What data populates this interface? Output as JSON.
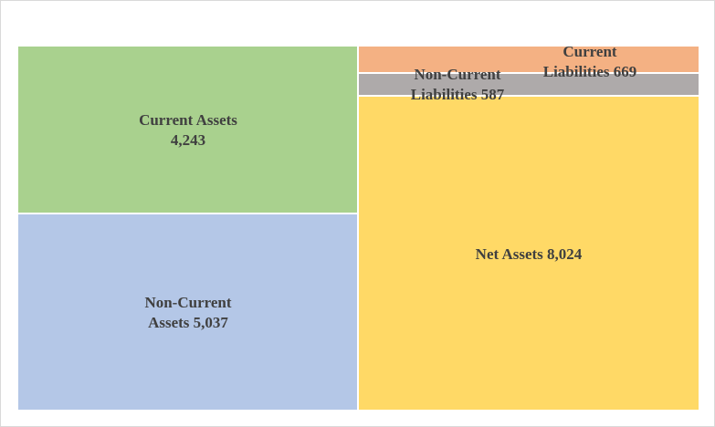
{
  "chart_data": {
    "type": "treemap",
    "groups": [
      {
        "items": [
          {
            "name_lines": [
              "Current  Assets",
              "4,243"
            ],
            "label": "Current Assets",
            "value": 4243,
            "color": "#a9d18e"
          },
          {
            "name_lines": [
              "Non-Current",
              "Assets 5,037"
            ],
            "label": "Non-Current Assets",
            "value": 5037,
            "color": "#b4c7e7"
          }
        ]
      },
      {
        "items": [
          {
            "name_lines": [
              "Current",
              "Liabilities  669"
            ],
            "label": "Current Liabilities",
            "value": 669,
            "color": "#f4b183"
          },
          {
            "name_lines": [
              "Non-Current",
              "Liabilities  587"
            ],
            "label": "Non-Current Liabilities",
            "value": 587,
            "color": "#aeaaaa"
          },
          {
            "name_lines": [
              "Net Assets 8,024"
            ],
            "label": "Net Assets",
            "value": 8024,
            "color": "#ffd966"
          }
        ]
      }
    ]
  }
}
